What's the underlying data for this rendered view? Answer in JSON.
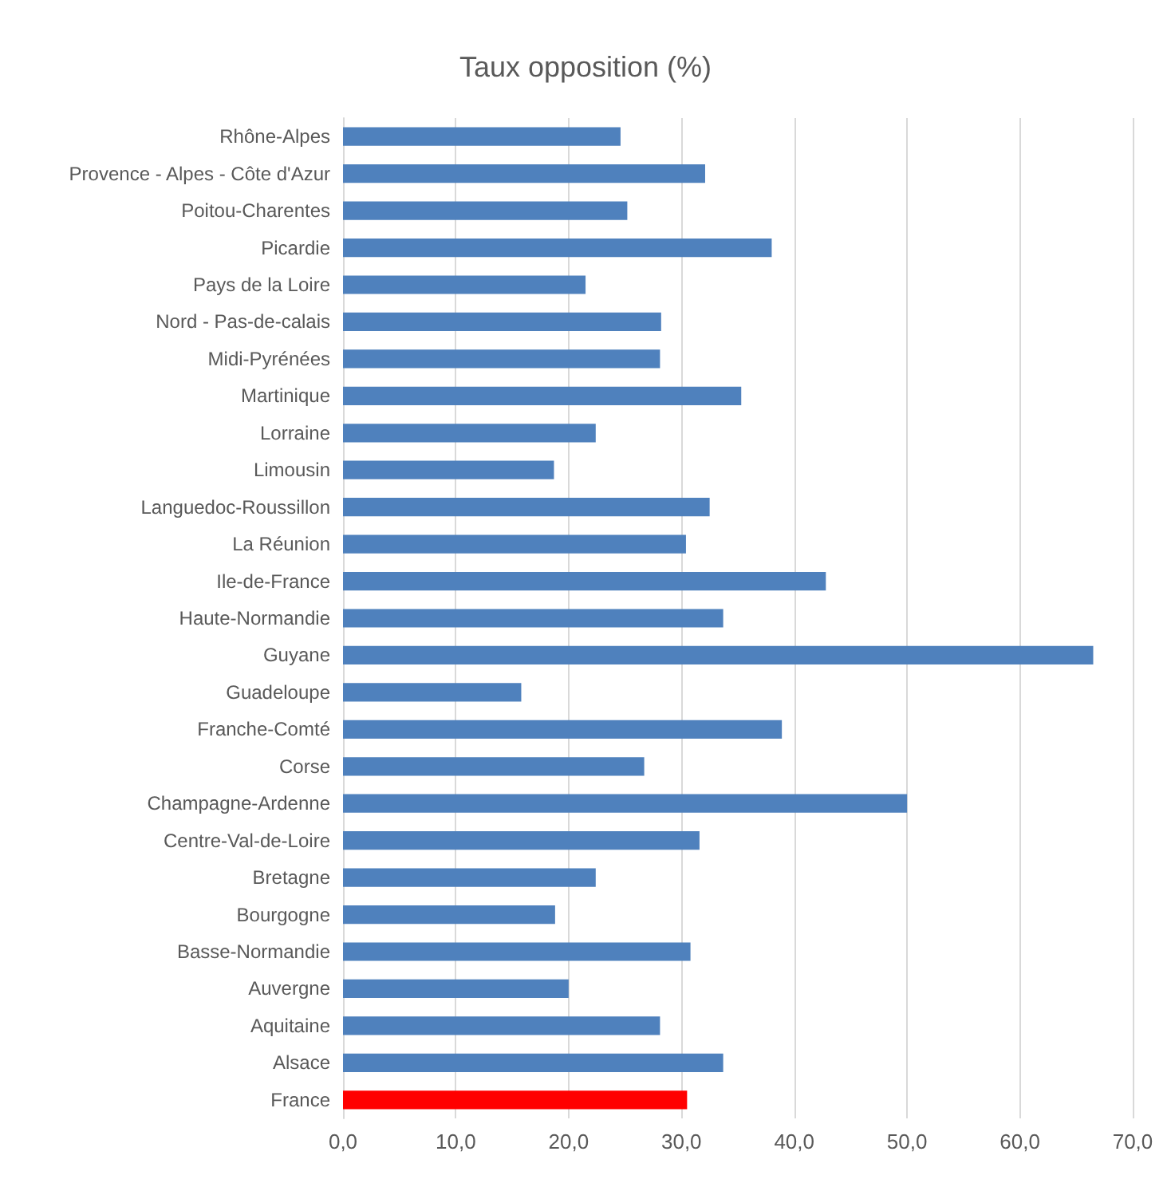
{
  "chart_data": {
    "type": "bar",
    "orientation": "horizontal",
    "title": "Taux opposition (%)",
    "categories": [
      "Rhône-Alpes",
      "Provence - Alpes - Côte d'Azur",
      "Poitou-Charentes",
      "Picardie",
      "Pays de la Loire",
      "Nord - Pas-de-calais",
      "Midi-Pyrénées",
      "Martinique",
      "Lorraine",
      "Limousin",
      "Languedoc-Roussillon",
      "La Réunion",
      "Ile-de-France",
      "Haute-Normandie",
      "Guyane",
      "Guadeloupe",
      "Franche-Comté",
      "Corse",
      "Champagne-Ardenne",
      "Centre-Val-de-Loire",
      "Bretagne",
      "Bourgogne",
      "Basse-Normandie",
      "Auvergne",
      "Aquitaine",
      "Alsace",
      "France"
    ],
    "values": [
      24.6,
      32.1,
      25.2,
      38.0,
      21.5,
      28.2,
      28.1,
      35.3,
      22.4,
      18.7,
      32.5,
      30.4,
      42.8,
      33.7,
      66.5,
      15.8,
      38.9,
      26.7,
      50.0,
      31.6,
      22.4,
      18.8,
      30.8,
      20.0,
      28.1,
      33.7,
      30.5
    ],
    "colors": [
      "#4f81bd",
      "#4f81bd",
      "#4f81bd",
      "#4f81bd",
      "#4f81bd",
      "#4f81bd",
      "#4f81bd",
      "#4f81bd",
      "#4f81bd",
      "#4f81bd",
      "#4f81bd",
      "#4f81bd",
      "#4f81bd",
      "#4f81bd",
      "#4f81bd",
      "#4f81bd",
      "#4f81bd",
      "#4f81bd",
      "#4f81bd",
      "#4f81bd",
      "#4f81bd",
      "#4f81bd",
      "#4f81bd",
      "#4f81bd",
      "#4f81bd",
      "#4f81bd",
      "#ff0000"
    ],
    "xlim": [
      0,
      70
    ],
    "xticks": [
      {
        "value": 0,
        "label": "0,0"
      },
      {
        "value": 10,
        "label": "10,0"
      },
      {
        "value": 20,
        "label": "20,0"
      },
      {
        "value": 30,
        "label": "30,0"
      },
      {
        "value": 40,
        "label": "40,0"
      },
      {
        "value": 50,
        "label": "50,0"
      },
      {
        "value": 60,
        "label": "60,0"
      },
      {
        "value": 70,
        "label": "70,0"
      }
    ],
    "grid": "x"
  }
}
